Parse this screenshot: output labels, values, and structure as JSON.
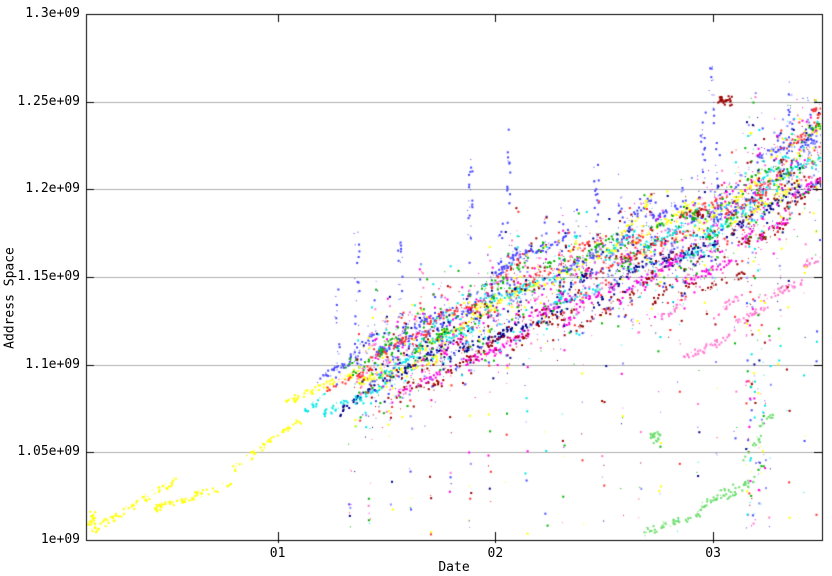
{
  "chart_data": {
    "type": "scatter",
    "title": "",
    "xlabel": "Date",
    "ylabel": "Address Space",
    "xlim": [
      0.12,
      3.5
    ],
    "ylim": [
      1.0,
      1.3
    ],
    "y_unit": "1e+09",
    "grid": "horizontal-only",
    "legend": "none",
    "background": "#ffffff",
    "border_color": "#000000",
    "grid_color": "#b0b0b0",
    "x_ticks": [
      {
        "v": 1,
        "label": "01"
      },
      {
        "v": 2,
        "label": "02"
      },
      {
        "v": 3,
        "label": "03"
      }
    ],
    "y_ticks": [
      {
        "v": 1.0,
        "label": "1e+09"
      },
      {
        "v": 1.05,
        "label": "1.05e+09"
      },
      {
        "v": 1.1,
        "label": "1.1e+09"
      },
      {
        "v": 1.15,
        "label": "1.15e+09"
      },
      {
        "v": 1.2,
        "label": "1.2e+09"
      },
      {
        "v": 1.25,
        "label": "1.25e+09"
      },
      {
        "v": 1.3,
        "label": "1.3e+09"
      }
    ],
    "palette": {
      "yellow": "#ffff00",
      "cyan": "#00e6e6",
      "blue": "#4646ff",
      "navy": "#00008c",
      "red": "#ff3030",
      "darkred": "#9c0000",
      "magenta": "#ff00e0",
      "pink": "#ff7ad2",
      "green": "#00b400",
      "lightgreen": "#6ede6e",
      "periwinkle": "#8c8cff"
    },
    "trend": [
      [
        0.12,
        1.008
      ],
      [
        0.6,
        1.04
      ],
      [
        1.0,
        1.066
      ],
      [
        1.2,
        1.08
      ],
      [
        1.4,
        1.097
      ],
      [
        1.6,
        1.11
      ],
      [
        1.8,
        1.122
      ],
      [
        2.0,
        1.136
      ],
      [
        2.2,
        1.146
      ],
      [
        2.5,
        1.158
      ],
      [
        2.8,
        1.17
      ],
      [
        3.0,
        1.18
      ],
      [
        3.2,
        1.2
      ],
      [
        3.35,
        1.215
      ],
      [
        3.5,
        1.228
      ]
    ],
    "series": [
      {
        "name": "yellow-track",
        "color": "yellow",
        "x0": 0.12,
        "x1": 3.5,
        "offset": 0.0,
        "spread": 0.012,
        "streak": 0.3,
        "rise": 0.022,
        "density": 0.8
      },
      {
        "name": "cyan-track",
        "color": "cyan",
        "x0": 1.12,
        "x1": 3.5,
        "offset": -0.004,
        "spread": 0.01,
        "streak": 0.16,
        "rise": 0.012,
        "density": 0.8
      },
      {
        "name": "blue-track",
        "color": "blue",
        "x0": 1.18,
        "x1": 3.5,
        "offset": 0.012,
        "spread": 0.01,
        "streak": 0.16,
        "rise": 0.012,
        "density": 0.8
      },
      {
        "name": "red-track",
        "color": "red",
        "x0": 1.22,
        "x1": 3.5,
        "offset": 0.007,
        "spread": 0.009,
        "streak": 0.15,
        "rise": 0.011,
        "density": 0.7
      },
      {
        "name": "green-track",
        "color": "green",
        "x0": 1.3,
        "x1": 3.5,
        "offset": 0.004,
        "spread": 0.011,
        "streak": 0.14,
        "rise": 0.011,
        "density": 0.5
      },
      {
        "name": "navy-track",
        "color": "navy",
        "x0": 1.28,
        "x1": 3.5,
        "offset": -0.013,
        "spread": 0.008,
        "streak": 0.17,
        "rise": 0.012,
        "density": 0.7
      },
      {
        "name": "magenta-track",
        "color": "magenta",
        "x0": 1.55,
        "x1": 3.5,
        "offset": -0.021,
        "spread": 0.01,
        "streak": 0.16,
        "rise": 0.012,
        "density": 0.8
      },
      {
        "name": "darkred-track",
        "color": "darkred",
        "x0": 1.5,
        "x1": 3.5,
        "offset": -0.028,
        "spread": 0.009,
        "streak": 0.15,
        "rise": 0.011,
        "density": 0.5
      },
      {
        "name": "pink-track",
        "color": "pink",
        "x0": 2.75,
        "x1": 3.5,
        "offset": -0.055,
        "spread": 0.014,
        "streak": 0.18,
        "rise": 0.014,
        "density": 0.9
      },
      {
        "name": "lightgreen-track",
        "color": "lightgreen",
        "x0": 2.68,
        "x1": 3.27,
        "offset": 0.0,
        "spread": 0.006,
        "streak": 0.12,
        "rise": 0.01,
        "density": 0.9,
        "anchors": [
          [
            2.68,
            1.004
          ],
          [
            2.85,
            1.012
          ],
          [
            3.0,
            1.022
          ],
          [
            3.1,
            1.034
          ],
          [
            3.18,
            1.056
          ],
          [
            3.24,
            1.082
          ]
        ]
      }
    ],
    "spikes": [
      {
        "x": 1.27,
        "y0": 1.088,
        "y1": 1.145,
        "n": 16,
        "color": "blue"
      },
      {
        "x": 1.36,
        "y0": 1.1,
        "y1": 1.178,
        "n": 22,
        "color": "blue"
      },
      {
        "x": 1.45,
        "y0": 1.094,
        "y1": 1.152,
        "n": 14,
        "color": "mixed"
      },
      {
        "x": 1.5,
        "y0": 1.082,
        "y1": 1.14,
        "n": 18,
        "color": "mixed"
      },
      {
        "x": 1.56,
        "y0": 1.105,
        "y1": 1.175,
        "n": 20,
        "color": "blue"
      },
      {
        "x": 1.66,
        "y0": 1.098,
        "y1": 1.162,
        "n": 16,
        "color": "mixed"
      },
      {
        "x": 1.75,
        "y0": 1.09,
        "y1": 1.15,
        "n": 16,
        "color": "mixed"
      },
      {
        "x": 1.88,
        "y0": 1.125,
        "y1": 1.218,
        "n": 26,
        "color": "blue"
      },
      {
        "x": 1.97,
        "y0": 1.1,
        "y1": 1.17,
        "n": 22,
        "color": "mixed"
      },
      {
        "x": 2.02,
        "y0": 1.13,
        "y1": 1.185,
        "n": 14,
        "color": "blue"
      },
      {
        "x": 2.06,
        "y0": 1.125,
        "y1": 1.235,
        "n": 24,
        "color": "blue"
      },
      {
        "x": 2.1,
        "y0": 1.1,
        "y1": 1.19,
        "n": 24,
        "color": "mixed"
      },
      {
        "x": 2.23,
        "y0": 1.11,
        "y1": 1.185,
        "n": 18,
        "color": "mixed"
      },
      {
        "x": 2.3,
        "y0": 1.14,
        "y1": 1.19,
        "n": 12,
        "color": "blue"
      },
      {
        "x": 2.37,
        "y0": 1.12,
        "y1": 1.19,
        "n": 18,
        "color": "mixed"
      },
      {
        "x": 2.46,
        "y0": 1.15,
        "y1": 1.218,
        "n": 20,
        "color": "blue"
      },
      {
        "x": 2.57,
        "y0": 1.155,
        "y1": 1.21,
        "n": 14,
        "color": "blue"
      },
      {
        "x": 2.62,
        "y0": 1.12,
        "y1": 1.2,
        "n": 22,
        "color": "mixed"
      },
      {
        "x": 2.72,
        "y0": 1.15,
        "y1": 1.196,
        "n": 12,
        "color": "blue"
      },
      {
        "x": 2.86,
        "y0": 1.13,
        "y1": 1.21,
        "n": 24,
        "color": "mixed"
      },
      {
        "x": 2.95,
        "y0": 1.205,
        "y1": 1.248,
        "n": 18,
        "color": "blue"
      },
      {
        "x": 2.99,
        "y0": 1.235,
        "y1": 1.272,
        "n": 14,
        "color": "blue"
      },
      {
        "x": 3.02,
        "y0": 1.195,
        "y1": 1.232,
        "n": 10,
        "color": "blue"
      },
      {
        "x": 3.17,
        "y0": 1.005,
        "y1": 1.26,
        "n": 110,
        "color": "mixed",
        "w": 10
      },
      {
        "x": 3.22,
        "y0": 1.02,
        "y1": 1.245,
        "n": 70,
        "color": "mixed",
        "w": 8
      },
      {
        "x": 3.3,
        "y0": 1.1,
        "y1": 1.235,
        "n": 36,
        "color": "mixed"
      },
      {
        "x": 3.35,
        "y0": 1.225,
        "y1": 1.262,
        "n": 16,
        "color": "blue"
      },
      {
        "x": 3.44,
        "y0": 1.215,
        "y1": 1.252,
        "n": 10,
        "color": "blue"
      }
    ],
    "columns": {
      "xs": [
        1.33,
        1.42,
        1.52,
        1.61,
        1.7,
        1.79,
        1.88,
        1.97,
        2.05,
        2.14,
        2.23,
        2.31,
        2.4,
        2.49,
        2.58,
        2.66,
        2.75,
        2.84,
        2.93,
        3.01,
        3.1,
        3.26,
        3.34,
        3.42,
        3.47
      ],
      "n": 9,
      "y0": 1.002
    },
    "noise": {
      "x0": 1.35,
      "x1": 3.5,
      "n": 2000,
      "spread": 0.022,
      "n_below": 550,
      "below_depth": 0.06,
      "colors": [
        "yellow",
        "cyan",
        "blue",
        "red",
        "green",
        "navy",
        "magenta",
        "darkred",
        "pink",
        "periwinkle"
      ]
    },
    "clusters": [
      {
        "x": 3.05,
        "y": 1.251,
        "w": 14,
        "h": 10,
        "n": 26,
        "color": "darkred"
      },
      {
        "x": 2.94,
        "y": 1.187,
        "w": 8,
        "h": 8,
        "n": 10,
        "color": "darkred"
      },
      {
        "x": 2.73,
        "y": 1.059,
        "w": 10,
        "h": 12,
        "n": 22,
        "color": "lightgreen"
      },
      {
        "x": 3.47,
        "y": 1.245,
        "w": 10,
        "h": 8,
        "n": 12,
        "color": "red"
      },
      {
        "x": 0.14,
        "y": 1.013,
        "w": 8,
        "h": 14,
        "n": 18,
        "color": "yellow"
      }
    ]
  }
}
